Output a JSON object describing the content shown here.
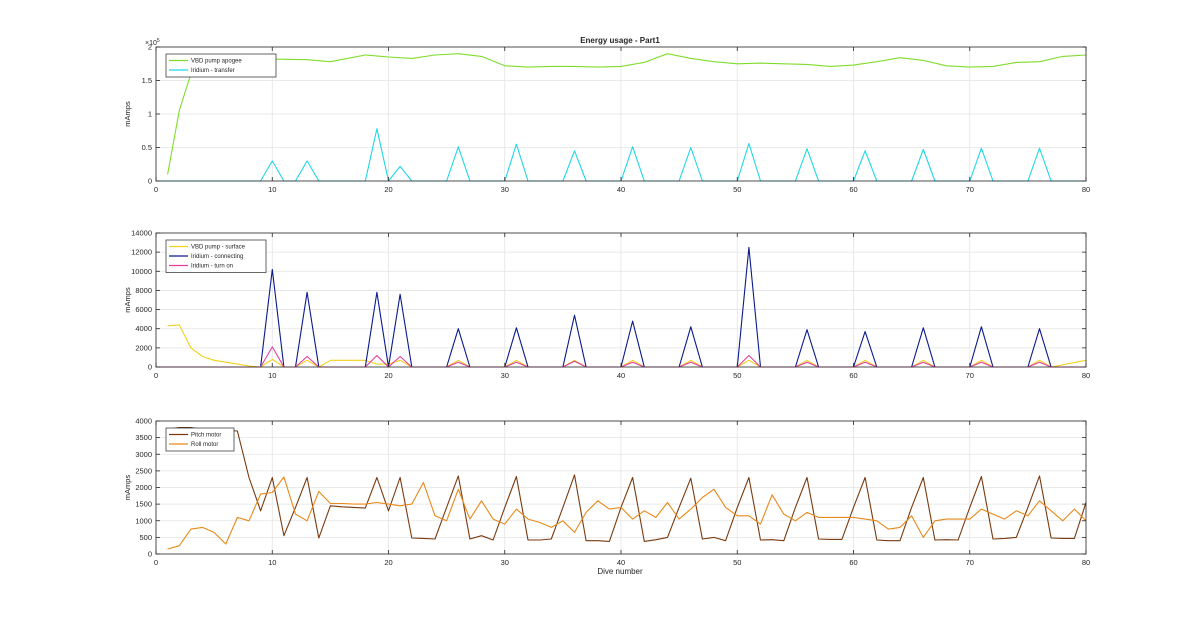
{
  "figure": {
    "title": "Energy usage - Part1",
    "xlabel": "Dive number",
    "background": "#ffffff",
    "axis_color": "#262626",
    "grid_color": "#e3e3e3"
  },
  "chart_data": [
    {
      "type": "line",
      "title": "Energy usage - Part1",
      "xlabel": "",
      "ylabel": "mAmps",
      "xlim": [
        0,
        80
      ],
      "ylim": [
        0,
        200000
      ],
      "xticks": [
        0,
        10,
        20,
        30,
        40,
        50,
        60,
        70,
        80
      ],
      "yticks": [
        0,
        50000,
        100000,
        150000,
        200000
      ],
      "ytick_labels": [
        "0",
        "0.5",
        "1",
        "1.5",
        "2"
      ],
      "y_exponent": "×10",
      "y_exponent_power": "5",
      "grid": true,
      "legend_position": "top-left",
      "series": [
        {
          "name": "VBD pump apogee",
          "color": "#7fdc2b",
          "x": [
            1,
            2,
            3,
            4,
            6,
            10,
            13,
            15,
            18,
            20,
            22,
            24,
            26,
            28,
            30,
            32,
            34,
            36,
            38,
            40,
            42,
            44,
            46,
            48,
            50,
            52,
            54,
            56,
            58,
            60,
            62,
            64,
            66,
            68,
            70,
            72,
            74,
            76,
            78,
            80
          ],
          "y": [
            10000,
            105000,
            160000,
            184000,
            185000,
            182000,
            181000,
            178000,
            188000,
            185000,
            183000,
            188000,
            190000,
            186000,
            172000,
            170000,
            171000,
            171000,
            170000,
            171000,
            177000,
            190000,
            183000,
            178000,
            175000,
            176000,
            175000,
            174000,
            171000,
            173000,
            178000,
            184000,
            180000,
            172000,
            170000,
            171000,
            177000,
            178000,
            186000,
            188000
          ]
        },
        {
          "name": "Iridium - transfer",
          "color": "#1ed8e8",
          "x": [
            0,
            9,
            10,
            11,
            12,
            13,
            14,
            18,
            19,
            20,
            21,
            22,
            25,
            26,
            27,
            30,
            31,
            32,
            35,
            36,
            37,
            40,
            41,
            42,
            45,
            46,
            47,
            50,
            51,
            52,
            55,
            56,
            57,
            60,
            61,
            62,
            65,
            66,
            67,
            70,
            71,
            72,
            75,
            76,
            77,
            80
          ],
          "y": [
            0,
            0,
            30000,
            0,
            0,
            30000,
            0,
            0,
            78000,
            0,
            22000,
            0,
            0,
            51000,
            0,
            0,
            55000,
            0,
            0,
            45000,
            0,
            0,
            51000,
            0,
            0,
            50000,
            0,
            0,
            56000,
            0,
            0,
            48000,
            0,
            0,
            45000,
            0,
            0,
            47000,
            0,
            0,
            49000,
            0,
            0,
            49000,
            0,
            0
          ]
        }
      ]
    },
    {
      "type": "line",
      "title": "",
      "xlabel": "",
      "ylabel": "mAmps",
      "xlim": [
        0,
        80
      ],
      "ylim": [
        0,
        14000
      ],
      "xticks": [
        0,
        10,
        20,
        30,
        40,
        50,
        60,
        70,
        80
      ],
      "yticks": [
        0,
        2000,
        4000,
        6000,
        8000,
        10000,
        12000,
        14000
      ],
      "ytick_labels": [
        "0",
        "2000",
        "4000",
        "6000",
        "8000",
        "10000",
        "12000",
        "14000"
      ],
      "grid": true,
      "legend_position": "top-left",
      "series": [
        {
          "name": "VBD pump - surface",
          "color": "#f2d11e",
          "x": [
            1,
            2,
            3,
            4,
            5,
            6,
            7,
            8,
            9,
            10,
            11,
            12,
            13,
            14,
            15,
            16,
            17,
            18,
            19,
            20,
            21,
            22,
            25,
            26,
            27,
            30,
            31,
            32,
            35,
            36,
            37,
            40,
            41,
            42,
            45,
            46,
            47,
            50,
            51,
            52,
            55,
            56,
            57,
            60,
            61,
            62,
            65,
            66,
            67,
            70,
            71,
            72,
            75,
            76,
            77,
            80
          ],
          "y": [
            4300,
            4400,
            2000,
            1100,
            700,
            500,
            300,
            100,
            0,
            800,
            0,
            0,
            700,
            0,
            700,
            700,
            700,
            700,
            300,
            300,
            700,
            0,
            0,
            700,
            0,
            0,
            700,
            0,
            0,
            700,
            0,
            0,
            700,
            0,
            0,
            700,
            0,
            0,
            700,
            0,
            0,
            700,
            0,
            0,
            700,
            0,
            0,
            700,
            0,
            0,
            700,
            0,
            0,
            700,
            0,
            700
          ]
        },
        {
          "name": "Iridium - connecting",
          "color": "#0a1a8c",
          "x": [
            0,
            9,
            10,
            11,
            12,
            13,
            14,
            18,
            19,
            20,
            21,
            22,
            25,
            26,
            27,
            30,
            31,
            32,
            35,
            36,
            37,
            40,
            41,
            42,
            45,
            46,
            47,
            50,
            51,
            52,
            55,
            56,
            57,
            60,
            61,
            62,
            65,
            66,
            67,
            70,
            71,
            72,
            75,
            76,
            77,
            80
          ],
          "y": [
            0,
            0,
            10200,
            0,
            0,
            7800,
            0,
            0,
            7800,
            0,
            7600,
            0,
            0,
            4000,
            0,
            0,
            4100,
            0,
            0,
            5400,
            0,
            0,
            4800,
            0,
            0,
            4200,
            0,
            0,
            12500,
            0,
            0,
            3900,
            0,
            0,
            3700,
            0,
            0,
            4100,
            0,
            0,
            4200,
            0,
            0,
            4000,
            0,
            0
          ]
        },
        {
          "name": "Iridium - turn on",
          "color": "#e040a0",
          "x": [
            0,
            9,
            10,
            11,
            12,
            13,
            14,
            18,
            19,
            20,
            21,
            22,
            25,
            26,
            27,
            30,
            31,
            32,
            35,
            36,
            37,
            40,
            41,
            42,
            45,
            46,
            47,
            50,
            51,
            52,
            55,
            56,
            57,
            60,
            61,
            62,
            65,
            66,
            67,
            70,
            71,
            72,
            75,
            76,
            77,
            80
          ],
          "y": [
            0,
            0,
            2100,
            0,
            0,
            1100,
            0,
            0,
            1200,
            0,
            1100,
            0,
            0,
            500,
            0,
            0,
            500,
            0,
            0,
            600,
            0,
            0,
            500,
            0,
            0,
            500,
            0,
            0,
            1200,
            0,
            0,
            500,
            0,
            0,
            500,
            0,
            0,
            500,
            0,
            0,
            500,
            0,
            0,
            500,
            0,
            0
          ]
        }
      ]
    },
    {
      "type": "line",
      "title": "",
      "xlabel": "Dive number",
      "ylabel": "mAmps",
      "xlim": [
        0,
        80
      ],
      "ylim": [
        0,
        4000
      ],
      "xticks": [
        0,
        10,
        20,
        30,
        40,
        50,
        60,
        70,
        80
      ],
      "yticks": [
        0,
        500,
        1000,
        1500,
        2000,
        2500,
        3000,
        3500,
        4000
      ],
      "ytick_labels": [
        "0",
        "500",
        "1000",
        "1500",
        "2000",
        "2500",
        "3000",
        "3500",
        "4000"
      ],
      "grid": true,
      "legend_position": "top-left",
      "series": [
        {
          "name": "Pitch motor",
          "color": "#7a3a0e",
          "x": [
            1,
            2,
            3,
            4,
            5,
            6,
            7,
            8,
            9,
            10,
            11,
            12,
            13,
            14,
            15,
            16,
            17,
            18,
            19,
            20,
            21,
            22,
            23,
            24,
            25,
            26,
            27,
            28,
            29,
            30,
            31,
            32,
            33,
            34,
            35,
            36,
            37,
            38,
            39,
            40,
            41,
            42,
            43,
            44,
            45,
            46,
            47,
            48,
            49,
            50,
            51,
            52,
            53,
            54,
            55,
            56,
            57,
            58,
            59,
            60,
            61,
            62,
            63,
            64,
            65,
            66,
            67,
            68,
            69,
            70,
            71,
            72,
            73,
            74,
            75,
            76,
            77,
            78,
            79,
            80
          ],
          "y": [
            3750,
            3800,
            3800,
            3750,
            3750,
            3720,
            3700,
            2300,
            1300,
            2300,
            550,
            1400,
            2300,
            480,
            1450,
            1420,
            1400,
            1380,
            2300,
            1300,
            2300,
            480,
            470,
            450,
            1400,
            2350,
            450,
            550,
            420,
            1400,
            2330,
            420,
            420,
            450,
            1400,
            2380,
            400,
            400,
            380,
            1400,
            2300,
            380,
            430,
            500,
            1400,
            2280,
            450,
            500,
            400,
            1400,
            2300,
            420,
            430,
            400,
            1400,
            2300,
            450,
            440,
            440,
            1400,
            2300,
            420,
            400,
            400,
            1400,
            2300,
            420,
            430,
            420,
            1400,
            2330,
            450,
            470,
            500,
            1400,
            2350,
            480,
            470,
            470,
            1550
          ]
        },
        {
          "name": "Roll motor",
          "color": "#e8891a",
          "x": [
            1,
            2,
            3,
            4,
            5,
            6,
            7,
            8,
            9,
            10,
            11,
            12,
            13,
            14,
            15,
            16,
            17,
            18,
            19,
            20,
            21,
            22,
            23,
            24,
            25,
            26,
            27,
            28,
            29,
            30,
            31,
            32,
            33,
            34,
            35,
            36,
            37,
            38,
            39,
            40,
            41,
            42,
            43,
            44,
            45,
            46,
            47,
            48,
            49,
            50,
            51,
            52,
            53,
            54,
            55,
            56,
            57,
            58,
            59,
            60,
            61,
            62,
            63,
            64,
            65,
            66,
            67,
            68,
            69,
            70,
            71,
            72,
            73,
            74,
            75,
            76,
            77,
            78,
            79,
            80
          ],
          "y": [
            150,
            250,
            750,
            800,
            650,
            300,
            1100,
            1000,
            1800,
            1850,
            2320,
            1200,
            1000,
            1880,
            1520,
            1520,
            1500,
            1500,
            1550,
            1500,
            1450,
            1500,
            2150,
            1150,
            1000,
            1950,
            1050,
            1600,
            1050,
            900,
            1350,
            1050,
            950,
            800,
            1000,
            650,
            1250,
            1600,
            1350,
            1400,
            1050,
            1300,
            1100,
            1550,
            1050,
            1350,
            1700,
            1950,
            1400,
            1150,
            1150,
            900,
            1780,
            1200,
            1000,
            1250,
            1100,
            1100,
            1100,
            1100,
            1050,
            1000,
            750,
            800,
            1150,
            500,
            1000,
            1050,
            1050,
            1050,
            1350,
            1200,
            1050,
            1300,
            1150,
            1600,
            1300,
            1000,
            1350,
            1000
          ]
        }
      ]
    }
  ]
}
